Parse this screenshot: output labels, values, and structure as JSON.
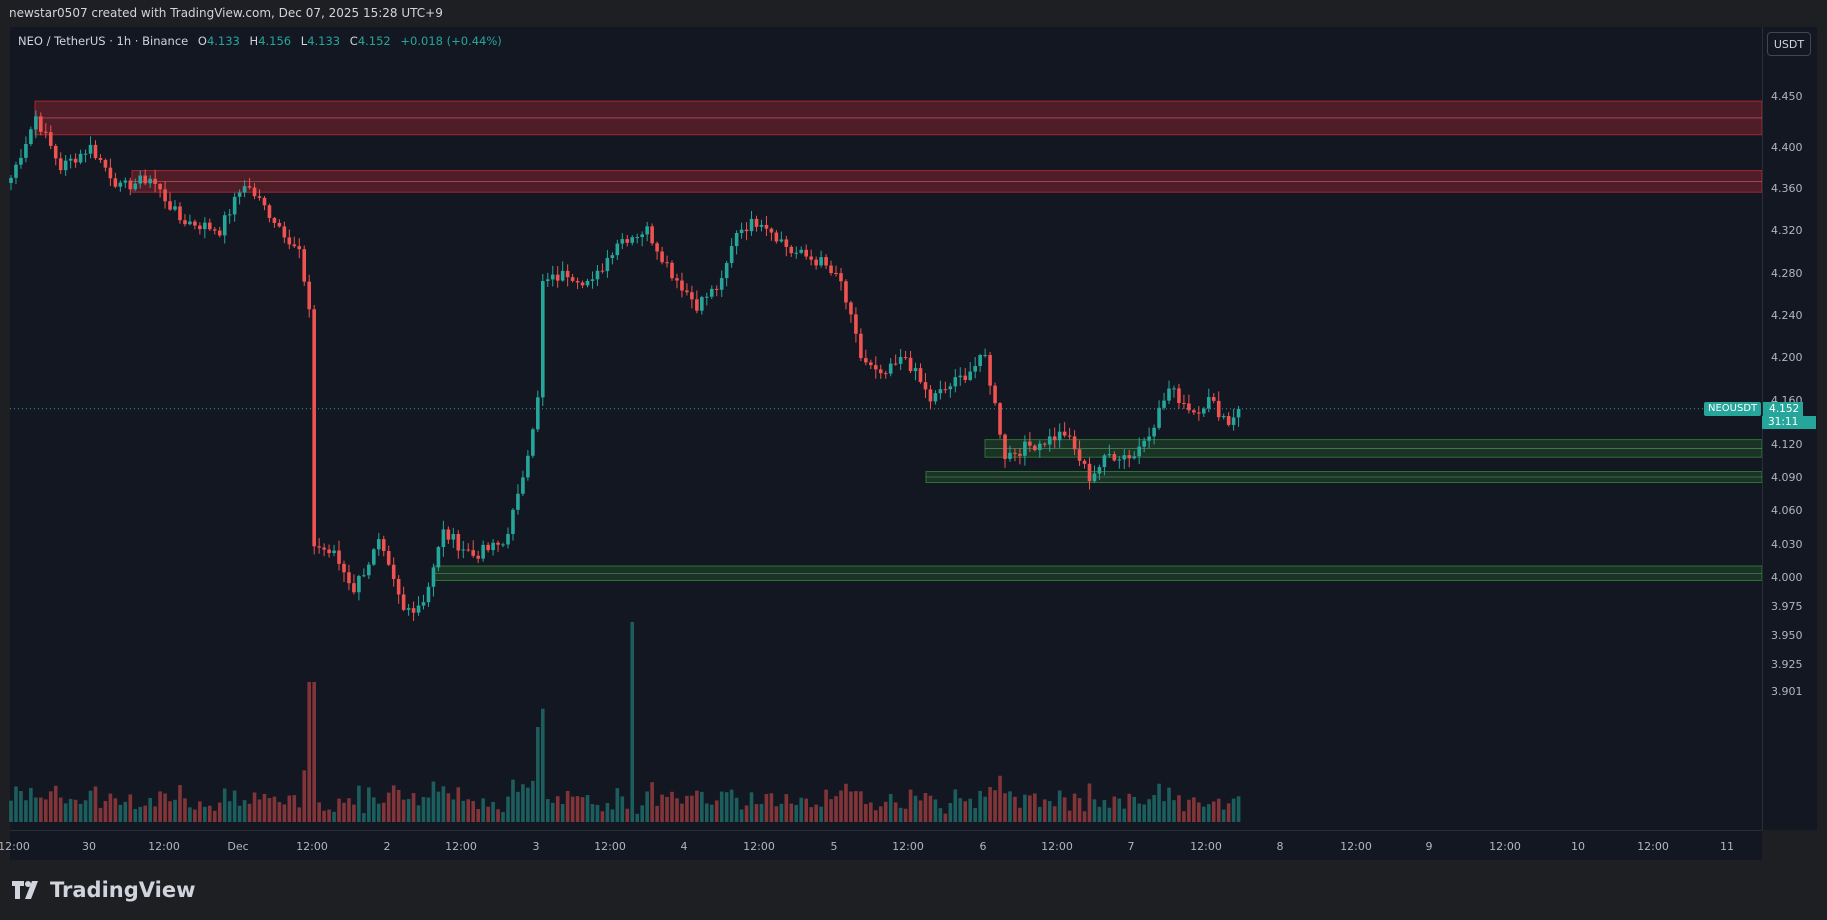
{
  "header": {
    "attribution": "newstar0507 created with TradingView.com, Dec 07, 2025 15:28 UTC+9"
  },
  "legend": {
    "symbol": "NEO / TetherUS · 1h · Binance",
    "open_label": "O",
    "open": "4.133",
    "high_label": "H",
    "high": "4.156",
    "low_label": "L",
    "low": "4.133",
    "close_label": "C",
    "close": "4.152",
    "change": "+0.018 (+0.44%)"
  },
  "currency_button": "USDT",
  "last_price_tag": {
    "symbol": "NEOUSDT",
    "price": "4.152",
    "countdown": "31:11"
  },
  "brand": "TradingView",
  "colors": {
    "up": "#26a69a",
    "down": "#ef5350",
    "resistance_zone": "#b22833",
    "support_zone": "#2e7d32",
    "background": "#131722"
  },
  "chart_data": {
    "type": "candlestick",
    "timeframe": "1h",
    "x_tick_labels": [
      "12:00",
      "30",
      "12:00",
      "Dec",
      "12:00",
      "2",
      "12:00",
      "3",
      "12:00",
      "4",
      "12:00",
      "5",
      "12:00",
      "6",
      "12:00",
      "7",
      "12:00",
      "8",
      "12:00",
      "9",
      "12:00",
      "10",
      "12:00",
      "11"
    ],
    "y_tick_labels": [
      "4.450",
      "4.400",
      "4.360",
      "4.320",
      "4.280",
      "4.240",
      "4.200",
      "4.160",
      "4.120",
      "4.090",
      "4.060",
      "4.030",
      "4.000",
      "3.975",
      "3.950",
      "3.925",
      "3.901"
    ],
    "last_price": 4.152,
    "zones": [
      {
        "kind": "resistance",
        "low": 4.412,
        "high": 4.445
      },
      {
        "kind": "resistance",
        "low": 4.356,
        "high": 4.377
      },
      {
        "kind": "support",
        "low": 4.108,
        "high": 4.124
      },
      {
        "kind": "support",
        "low": 4.085,
        "high": 4.095
      },
      {
        "kind": "support",
        "low": 3.997,
        "high": 4.01
      }
    ],
    "anchor_closes": [
      [
        0,
        4.37
      ],
      [
        5,
        4.43
      ],
      [
        10,
        4.38
      ],
      [
        16,
        4.4
      ],
      [
        22,
        4.36
      ],
      [
        28,
        4.37
      ],
      [
        34,
        4.33
      ],
      [
        42,
        4.32
      ],
      [
        47,
        4.365
      ],
      [
        53,
        4.33
      ],
      [
        58,
        4.3
      ],
      [
        60,
        4.24
      ],
      [
        61,
        4.03
      ],
      [
        65,
        4.02
      ],
      [
        69,
        3.99
      ],
      [
        74,
        4.03
      ],
      [
        79,
        3.97
      ],
      [
        83,
        3.98
      ],
      [
        87,
        4.04
      ],
      [
        93,
        4.02
      ],
      [
        99,
        4.03
      ],
      [
        102,
        4.07
      ],
      [
        106,
        4.16
      ],
      [
        107,
        4.27
      ],
      [
        112,
        4.28
      ],
      [
        117,
        4.27
      ],
      [
        122,
        4.31
      ],
      [
        128,
        4.32
      ],
      [
        133,
        4.28
      ],
      [
        138,
        4.25
      ],
      [
        143,
        4.27
      ],
      [
        146,
        4.32
      ],
      [
        151,
        4.33
      ],
      [
        157,
        4.3
      ],
      [
        163,
        4.29
      ],
      [
        167,
        4.27
      ],
      [
        171,
        4.2
      ],
      [
        175,
        4.18
      ],
      [
        180,
        4.2
      ],
      [
        185,
        4.16
      ],
      [
        191,
        4.18
      ],
      [
        196,
        4.2
      ],
      [
        200,
        4.11
      ],
      [
        206,
        4.12
      ],
      [
        212,
        4.13
      ],
      [
        217,
        4.09
      ],
      [
        221,
        4.11
      ],
      [
        226,
        4.11
      ],
      [
        230,
        4.14
      ],
      [
        233,
        4.17
      ],
      [
        238,
        4.15
      ],
      [
        241,
        4.16
      ],
      [
        245,
        4.14
      ],
      [
        247,
        4.152
      ]
    ]
  }
}
